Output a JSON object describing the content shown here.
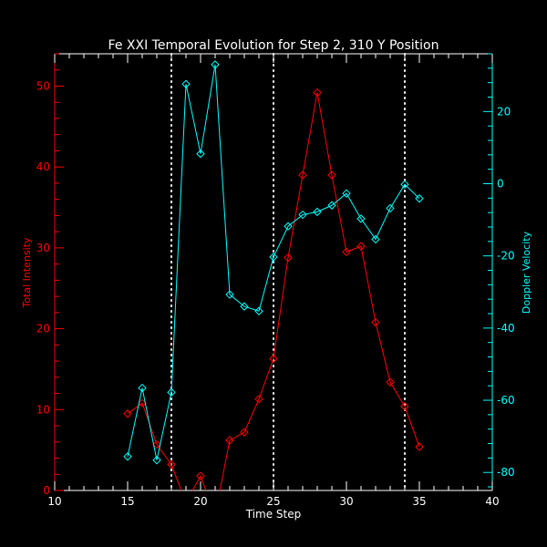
{
  "chart_data": {
    "type": "line",
    "title": "Fe XXI Temporal Evolution for Step 2, 310 Y Position",
    "xlabel": "Time Step",
    "ylabel_left": "Total Intensity",
    "ylabel_right": "Doppler Velocity",
    "xlim": [
      10,
      40
    ],
    "ylim_left": [
      0,
      54
    ],
    "ylim_right": [
      -85,
      36
    ],
    "x_ticks": [
      10,
      15,
      20,
      25,
      30,
      35,
      40
    ],
    "y_left_ticks": [
      0,
      10,
      20,
      30,
      40,
      50
    ],
    "y_right_ticks": [
      -80,
      -60,
      -40,
      -20,
      0,
      20
    ],
    "vlines": [
      18,
      25,
      34
    ],
    "series": [
      {
        "name": "Total Intensity",
        "axis": "left",
        "color": "#ff0000",
        "x": [
          15,
          16,
          17,
          18,
          19,
          20,
          21,
          22,
          23,
          24,
          25,
          26,
          27,
          28,
          29,
          30,
          31,
          32,
          33,
          34,
          35
        ],
        "values": [
          9.5,
          10.8,
          5.7,
          3.2,
          -1.5,
          1.8,
          -3.0,
          6.2,
          7.2,
          11.3,
          16.3,
          28.8,
          39.0,
          49.2,
          39.0,
          29.5,
          30.2,
          20.8,
          13.4,
          10.4,
          5.4
        ]
      },
      {
        "name": "Doppler Velocity",
        "axis": "right",
        "color": "#00ffff",
        "x": [
          15,
          16,
          17,
          18,
          19,
          20,
          21,
          22,
          23,
          24,
          25,
          26,
          27,
          28,
          29,
          30,
          31,
          32,
          33,
          34,
          35
        ],
        "values": [
          -75.6,
          -56.6,
          -76.6,
          -57.8,
          27.6,
          8.3,
          33.0,
          -30.7,
          -34.0,
          -35.3,
          -20.3,
          -11.8,
          -8.6,
          -7.8,
          -6.0,
          -2.7,
          -9.7,
          -15.4,
          -6.8,
          -0.2,
          -4.1
        ]
      }
    ]
  }
}
